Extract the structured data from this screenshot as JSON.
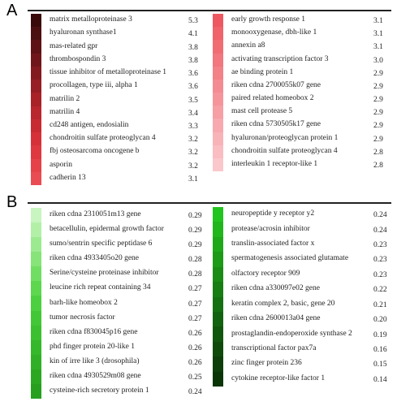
{
  "panels": [
    {
      "letter": "A",
      "columns": [
        {
          "rows": [
            {
              "label": "matrix metalloproteinase 3",
              "value": "5.3",
              "color": "#3a0a0b"
            },
            {
              "label": "hyaluronan synthase1",
              "value": "4.1",
              "color": "#4c0f11"
            },
            {
              "label": "mas-related gpr",
              "value": "3.8",
              "color": "#5e1215"
            },
            {
              "label": "thrombospondin 3",
              "value": "3.8",
              "color": "#70161a"
            },
            {
              "label": "tissue inhibitor of metalloproteinase 1",
              "value": "3.6",
              "color": "#831a1f"
            },
            {
              "label": "procollagen, type iii, alpha 1",
              "value": "3.6",
              "color": "#961e24"
            },
            {
              "label": "matrilin 2",
              "value": "3.5",
              "color": "#a82228"
            },
            {
              "label": "matrilin 4",
              "value": "3.4",
              "color": "#b9262d"
            },
            {
              "label": "cd248 antigen, endosialin",
              "value": "3.3",
              "color": "#c92b32"
            },
            {
              "label": "chondroitin sulfate proteoglycan 4",
              "value": "3.2",
              "color": "#d63138"
            },
            {
              "label": "fbj osteosarcoma oncogene b",
              "value": "3.2",
              "color": "#df3840"
            },
            {
              "label": "asporin",
              "value": "3.2",
              "color": "#e54249"
            },
            {
              "label": "cadherin 13",
              "value": "3.1",
              "color": "#ea4c54"
            }
          ]
        },
        {
          "rows": [
            {
              "label": "early growth response 1",
              "value": "3.1",
              "color": "#ee5860"
            },
            {
              "label": "monooxygenase, dbh-like 1",
              "value": "3.1",
              "color": "#f0636a"
            },
            {
              "label": "annexin a8",
              "value": "3.1",
              "color": "#f16d74"
            },
            {
              "label": "activating transcription factor 3",
              "value": "3.0",
              "color": "#f2777e"
            },
            {
              "label": "ae binding protein 1",
              "value": "2.9",
              "color": "#f38188"
            },
            {
              "label": "riken cdna 2700055k07 gene",
              "value": "2.9",
              "color": "#f48b92"
            },
            {
              "label": "paired related homeobox 2",
              "value": "2.9",
              "color": "#f5959b"
            },
            {
              "label": "mast cell protease 5",
              "value": "2.9",
              "color": "#f69fa5"
            },
            {
              "label": "riken cdna 5730505k17 gene",
              "value": "2.9",
              "color": "#f7a9af"
            },
            {
              "label": "hyaluronan/proteoglycan protein 1",
              "value": "2.9",
              "color": "#f8b3b8"
            },
            {
              "label": "chondroitin sulfate proteoglycan 4",
              "value": "2.8",
              "color": "#f9bdc2"
            },
            {
              "label": "interleukin 1 receptor-like 1",
              "value": "2.8",
              "color": "#fac8cc"
            }
          ]
        }
      ]
    },
    {
      "letter": "B",
      "columns": [
        {
          "rows": [
            {
              "label": "riken cdna 2310051m13 gene",
              "value": "0.29",
              "color": "#c8f5c0"
            },
            {
              "label": "betacellulin, epidermal growth factor",
              "value": "0.29",
              "color": "#b2f0a8"
            },
            {
              "label": "sumo/sentrin specific peptidase 6",
              "value": "0.29",
              "color": "#9cea90"
            },
            {
              "label": "riken cdna 4933405o20 gene",
              "value": "0.28",
              "color": "#86e478"
            },
            {
              "label": "Serine/cysteine proteinase inhibitor",
              "value": "0.28",
              "color": "#70de62"
            },
            {
              "label": "leucine rich repeat containing 34",
              "value": "0.27",
              "color": "#5cd74e"
            },
            {
              "label": "barh-like homeobox 2",
              "value": "0.27",
              "color": "#4cd040"
            },
            {
              "label": "tumor necrosis factor",
              "value": "0.27",
              "color": "#42c836"
            },
            {
              "label": "riken cdna f830045p16 gene",
              "value": "0.26",
              "color": "#3bc030"
            },
            {
              "label": "phd finger protein 20-like 1",
              "value": "0.26",
              "color": "#35b82a"
            },
            {
              "label": "kin of irre like 3 (drosophila)",
              "value": "0.26",
              "color": "#30b026"
            },
            {
              "label": "riken cdna 4930529m08 gene",
              "value": "0.25",
              "color": "#2ba822"
            },
            {
              "label": "cysteine-rich secretory protein 1",
              "value": "0.24",
              "color": "#26a01e"
            }
          ]
        },
        {
          "rows": [
            {
              "label": "neuropeptide y receptor y2",
              "value": "0.24",
              "color": "#22c41e"
            },
            {
              "label": "protease/acrosin inhibitor",
              "value": "0.24",
              "color": "#20b61c"
            },
            {
              "label": "translin-associated factor x",
              "value": "0.23",
              "color": "#1ea81a"
            },
            {
              "label": "spermatogenesis associated glutamate",
              "value": "0.23",
              "color": "#1c9a18"
            },
            {
              "label": "olfactory receptor 909",
              "value": "0.23",
              "color": "#1a8c16"
            },
            {
              "label": "riken cdna a330097e02 gene",
              "value": "0.22",
              "color": "#177e13"
            },
            {
              "label": "keratin complex 2, basic, gene 20",
              "value": "0.21",
              "color": "#157011"
            },
            {
              "label": "riken cdna 2600013a04 gene",
              "value": "0.20",
              "color": "#13620f"
            },
            {
              "label": "prostaglandin-endoperoxide synthase 2",
              "value": "0.19",
              "color": "#11560d"
            },
            {
              "label": "transcriptional factor pax7a",
              "value": "0.16",
              "color": "#0f4a0b"
            },
            {
              "label": "zinc finger protein 236",
              "value": "0.15",
              "color": "#0c3f09"
            },
            {
              "label": "cytokine receptor-like factor 1",
              "value": "0.14",
              "color": "#0a3507"
            }
          ]
        }
      ]
    }
  ]
}
